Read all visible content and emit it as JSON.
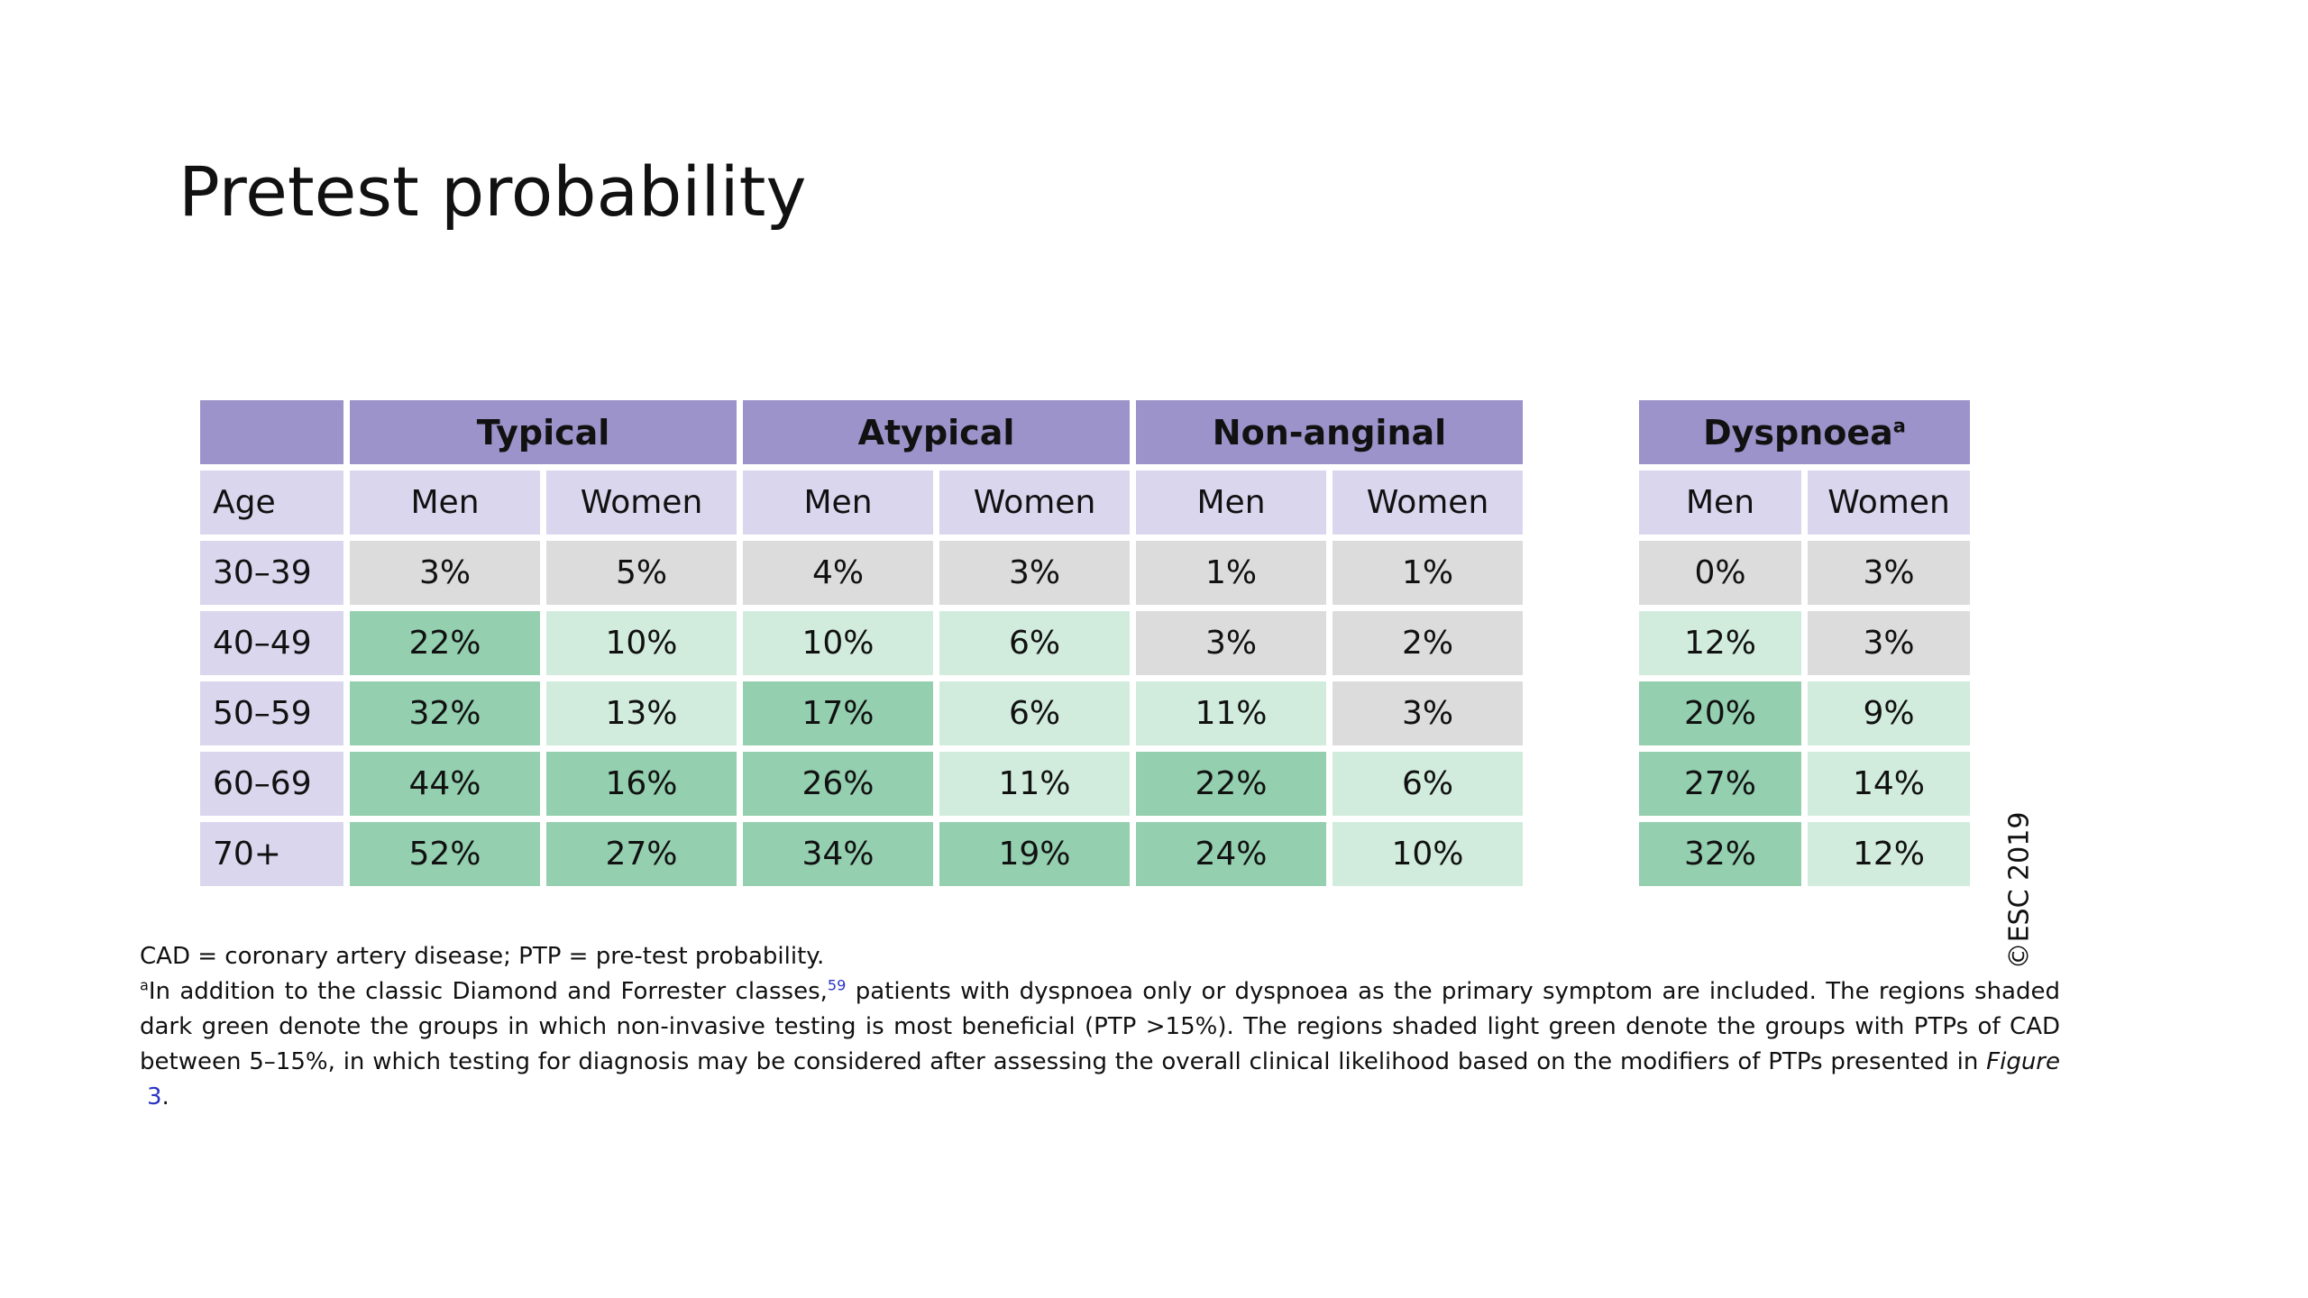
{
  "slide": {
    "title": "Pretest probability"
  },
  "table": {
    "groups": [
      "Typical",
      "Atypical",
      "Non-anginal",
      "Dyspnoea"
    ],
    "dyspnoea_marker": "a",
    "age_header": "Age",
    "sub_headers": [
      "Men",
      "Women"
    ],
    "rows": [
      {
        "age": "30–39",
        "values": [
          "3%",
          "5%",
          "4%",
          "3%",
          "1%",
          "1%",
          "0%",
          "3%"
        ]
      },
      {
        "age": "40–49",
        "values": [
          "22%",
          "10%",
          "10%",
          "6%",
          "3%",
          "2%",
          "12%",
          "3%"
        ]
      },
      {
        "age": "50–59",
        "values": [
          "32%",
          "13%",
          "17%",
          "6%",
          "11%",
          "3%",
          "20%",
          "9%"
        ]
      },
      {
        "age": "60–69",
        "values": [
          "44%",
          "16%",
          "26%",
          "11%",
          "22%",
          "6%",
          "27%",
          "14%"
        ]
      },
      {
        "age": "70+",
        "values": [
          "52%",
          "27%",
          "34%",
          "19%",
          "24%",
          "10%",
          "32%",
          "12%"
        ]
      }
    ],
    "shading_legend": {
      "grey": "#dcdcdc",
      "light_green": "#d1ecdd",
      "dark_green": "#94cfb0",
      "header_purple": "#9b93c9",
      "subheader_lavender": "#d9d6ee"
    }
  },
  "copyright": "©ESC 2019",
  "footnotes": {
    "abbrev": "CAD = coronary artery disease; PTP = pre-test probability.",
    "marker": "a",
    "note_part1": "In addition to the classic Diamond and Forrester classes,",
    "ref_number": "59",
    "note_part2": " patients with dyspnoea only or dyspnoea as the primary symptom are included. The regions shaded dark green denote the groups in which non-invasive testing is most beneficial (PTP >15%). The regions shaded light green denote the groups with PTPs of CAD between 5–15%, in which testing for diagnosis may be considered after assessing the overall clinical likelihood based on the modifiers of PTPs presented in ",
    "figure_word": "Figure",
    "figure_number": "3",
    "end_period": "."
  }
}
